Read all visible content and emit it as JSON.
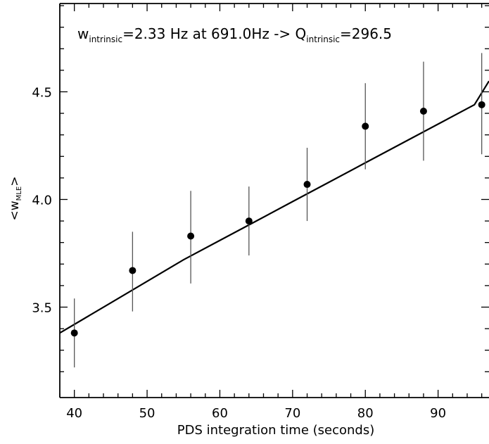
{
  "chart_data": {
    "type": "scatter",
    "title": {
      "w_main": "w",
      "w_sub": "intrinsic",
      "middle": "=2.33 Hz at 691.0Hz -> Q",
      "q_sub": "intrinsic",
      "q_value": "=296.5"
    },
    "xlabel": "PDS integration time (seconds)",
    "ylabel": {
      "open": "<w",
      "sub": "MLE",
      "close": ">"
    },
    "xlim": [
      38,
      97
    ],
    "ylim": [
      3.08,
      4.91
    ],
    "xticks": [
      "40",
      "50",
      "60",
      "70",
      "80",
      "90"
    ],
    "xtick_values": [
      40,
      50,
      60,
      70,
      80,
      90
    ],
    "yticks": [
      "3.5",
      "4.0",
      "4.5"
    ],
    "ytick_values": [
      3.5,
      4.0,
      4.5
    ],
    "points": [
      {
        "x": 40,
        "y": 3.38,
        "err_low": 3.22,
        "err_high": 3.54
      },
      {
        "x": 48,
        "y": 3.67,
        "err_low": 3.48,
        "err_high": 3.85
      },
      {
        "x": 56,
        "y": 3.83,
        "err_low": 3.61,
        "err_high": 4.04
      },
      {
        "x": 64,
        "y": 3.9,
        "err_low": 3.74,
        "err_high": 4.06
      },
      {
        "x": 72,
        "y": 4.07,
        "err_low": 3.9,
        "err_high": 4.24
      },
      {
        "x": 80,
        "y": 4.34,
        "err_low": 4.14,
        "err_high": 4.54
      },
      {
        "x": 88,
        "y": 4.41,
        "err_low": 4.18,
        "err_high": 4.64
      },
      {
        "x": 96,
        "y": 4.44,
        "err_low": 4.21,
        "err_high": 4.68
      }
    ],
    "fit_line": {
      "x": [
        38,
        40,
        45,
        50,
        55,
        60,
        65,
        70,
        75,
        80,
        85,
        90,
        95,
        97
      ],
      "y": [
        3.38,
        3.42,
        3.52,
        3.62,
        3.72,
        3.81,
        3.9,
        3.99,
        4.08,
        4.17,
        4.26,
        4.35,
        4.44,
        4.55
      ]
    },
    "grid": false,
    "colors": {
      "line": "#000000",
      "points": "#000000",
      "errorbars": "#555555"
    }
  }
}
